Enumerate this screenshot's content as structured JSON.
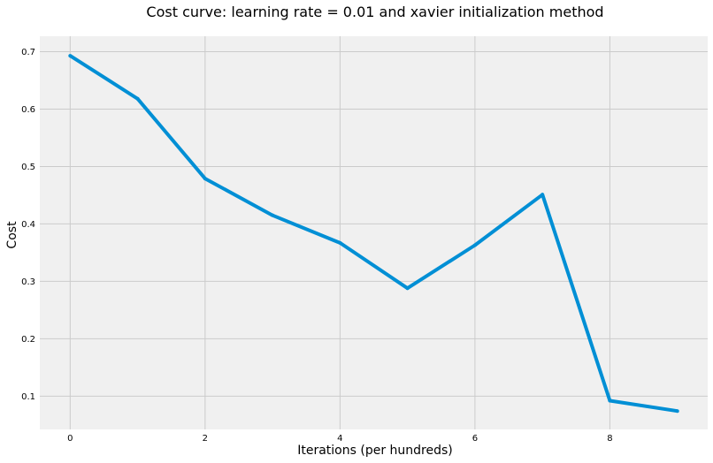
{
  "chart_data": {
    "type": "line",
    "title": "Cost curve: learning rate = 0.01 and xavier initialization method",
    "xlabel": "Iterations (per hundreds)",
    "ylabel": "Cost",
    "xlim": [
      -0.45,
      9.45
    ],
    "ylim": [
      0.042,
      0.727
    ],
    "x_ticks": [
      0,
      2,
      4,
      6,
      8
    ],
    "x_tick_labels": [
      "0",
      "2",
      "4",
      "6",
      "8"
    ],
    "y_ticks": [
      0.1,
      0.2,
      0.3,
      0.4,
      0.5,
      0.6,
      0.7
    ],
    "y_tick_labels": [
      "0.1",
      "0.2",
      "0.3",
      "0.4",
      "0.5",
      "0.6",
      "0.7"
    ],
    "grid": true,
    "series": [
      {
        "name": "cost",
        "x": [
          0,
          1,
          2,
          3,
          4,
          5,
          6,
          7,
          8,
          9
        ],
        "values": [
          0.693,
          0.618,
          0.479,
          0.415,
          0.367,
          0.288,
          0.363,
          0.451,
          0.092,
          0.074
        ]
      }
    ],
    "colors": {
      "background": "#f0f0f0",
      "grid": "#cbcbcb",
      "line": "#008fd5"
    }
  }
}
